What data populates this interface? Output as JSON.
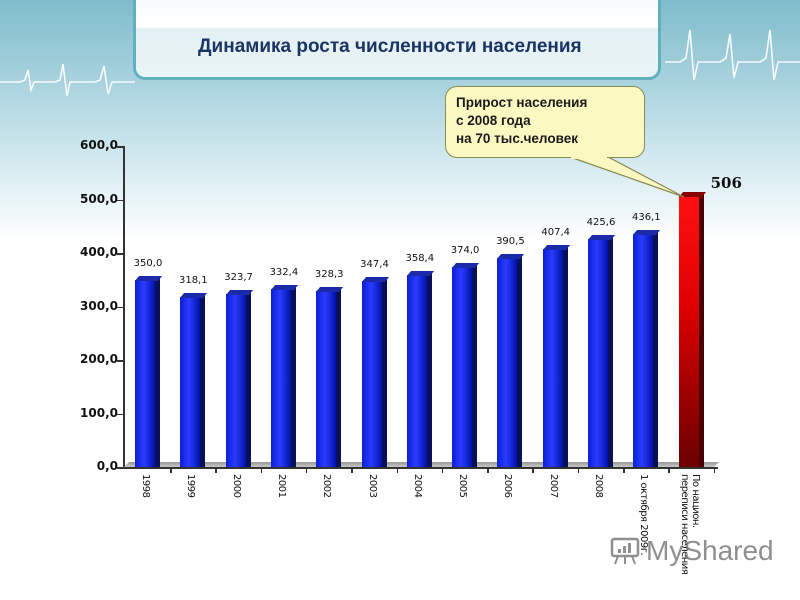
{
  "slide": {
    "title": "Динамика роста численности населения",
    "callout": {
      "lines": [
        "Прирост населения",
        "с 2008 года",
        "на 70 тыс.человек"
      ]
    },
    "watermark": {
      "icon": "presentation-chart-icon",
      "text": "MyShared"
    }
  },
  "colors": {
    "bar_blue": "#1a2ff0",
    "bar_red": "#e00000",
    "title_text": "#1a3563",
    "callout_fill": "#fbf8c2",
    "header_teal": "#7fbccb"
  },
  "chart_data": {
    "type": "bar",
    "title": "Динамика роста численности населения",
    "xlabel": "",
    "ylabel": "",
    "ylim": [
      0,
      600
    ],
    "yticks": [
      "0,0",
      "100,0",
      "200,0",
      "300,0",
      "400,0",
      "500,0",
      "600,0"
    ],
    "grid": false,
    "legend": null,
    "categories": [
      "1998",
      "1999",
      "2000",
      "2001",
      "2002",
      "2003",
      "2004",
      "2005",
      "2006",
      "2007",
      "2008",
      "1 октября 2009г.",
      "По национ. переписи населения"
    ],
    "values": [
      350.0,
      318.1,
      323.7,
      332.4,
      328.3,
      347.4,
      358.4,
      374.0,
      390.5,
      407.4,
      425.6,
      436.1,
      506
    ],
    "value_labels": [
      "350,0",
      "318,1",
      "323,7",
      "332,4",
      "328,3",
      "347,4",
      "358,4",
      "374,0",
      "390,5",
      "407,4",
      "425,6",
      "436,1",
      "506"
    ],
    "bar_colors": [
      "blue",
      "blue",
      "blue",
      "blue",
      "blue",
      "blue",
      "blue",
      "blue",
      "blue",
      "blue",
      "blue",
      "blue",
      "red"
    ],
    "annotation": "Прирост населения с 2008 года на 70 тыс.человек"
  }
}
